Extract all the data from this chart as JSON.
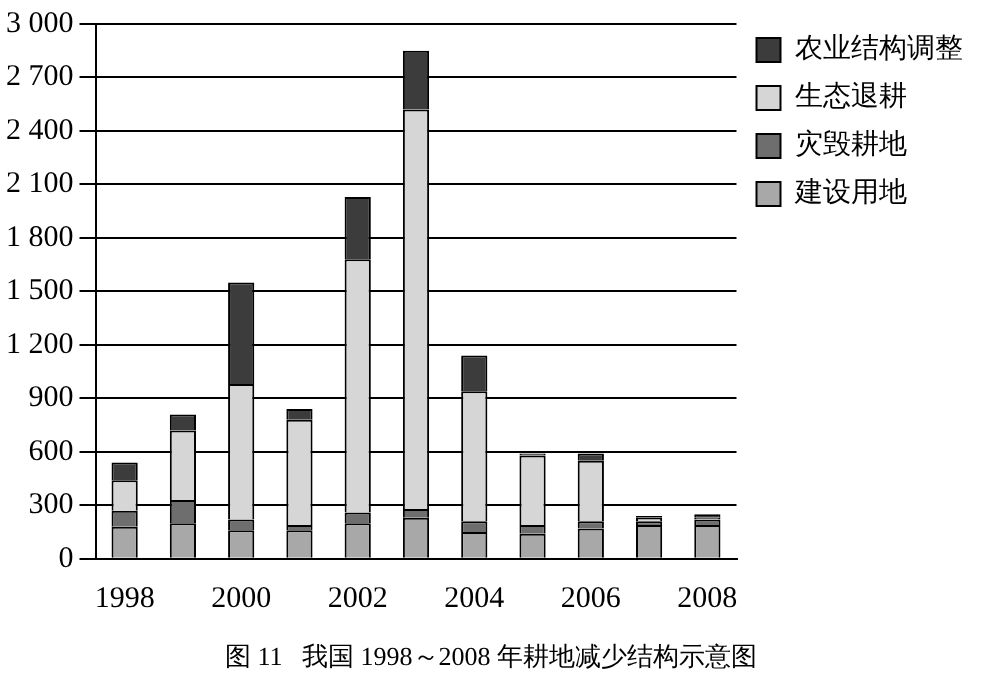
{
  "chart_data": {
    "type": "bar",
    "stacked": true,
    "title": "图 11   我国 1998～2008 年耕地减少结构示意图",
    "categories": [
      "1998",
      null,
      "2000",
      null,
      "2002",
      null,
      "2004",
      null,
      "2006",
      null,
      "2008"
    ],
    "series": [
      {
        "name": "建设用地",
        "color": "#a8a8a8",
        "values": [
          180,
          200,
          160,
          160,
          200,
          230,
          150,
          140,
          170,
          190,
          190
        ]
      },
      {
        "name": "灾毁耕地",
        "color": "#6e6e6e",
        "values": [
          90,
          130,
          60,
          30,
          60,
          50,
          60,
          50,
          40,
          20,
          30
        ]
      },
      {
        "name": "生态退耕",
        "color": "#d6d6d6",
        "values": [
          170,
          390,
          760,
          590,
          1420,
          2240,
          730,
          390,
          340,
          20,
          10
        ]
      },
      {
        "name": "农业结构调整",
        "color": "#3c3c3c",
        "values": [
          100,
          90,
          570,
          60,
          350,
          330,
          200,
          10,
          40,
          10,
          20
        ]
      }
    ],
    "ylim": [
      0,
      3000
    ],
    "yticks": [
      0,
      300,
      600,
      900,
      {
        "value": 1200,
        "label": "1 200"
      },
      {
        "value": 1500,
        "label": "1 500"
      },
      {
        "value": 1800,
        "label": "1 800"
      },
      {
        "value": 2100,
        "label": "2 100"
      },
      {
        "value": 2400,
        "label": "2 400"
      },
      {
        "value": 2700,
        "label": "2 700"
      },
      {
        "value": 3000,
        "label": "3 000"
      }
    ],
    "grid": "y",
    "legend": "top right"
  }
}
